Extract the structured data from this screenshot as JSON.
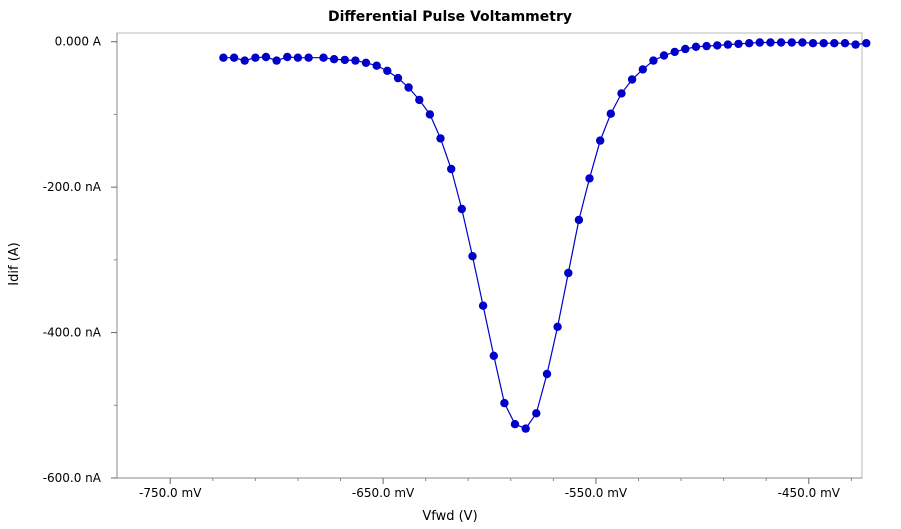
{
  "chart_data": {
    "type": "line",
    "title": "Differential Pulse Voltammetry",
    "xlabel": "Vfwd (V)",
    "ylabel": "Idif (A)",
    "xlim": [
      -775,
      -425
    ],
    "ylim": [
      -600,
      12
    ],
    "x_unit": "mV",
    "y_unit": "nA",
    "x_ticks": [
      {
        "value": -750,
        "label": "-750.0 mV"
      },
      {
        "value": -650,
        "label": "-650.0 mV"
      },
      {
        "value": -550,
        "label": "-550.0 mV"
      },
      {
        "value": -450,
        "label": "-450.0 mV"
      }
    ],
    "x_minor_ticks": [
      -730,
      -710,
      -690,
      -670,
      -630,
      -610,
      -590,
      -570,
      -530,
      -510,
      -490,
      -470,
      -430
    ],
    "y_ticks": [
      {
        "value": 0,
        "label": "0.000 A"
      },
      {
        "value": -200,
        "label": "-200.0 nA"
      },
      {
        "value": -400,
        "label": "-400.0 nA"
      },
      {
        "value": -600,
        "label": "-600.0 nA"
      }
    ],
    "y_minor_ticks": [
      -100,
      -300,
      -500
    ],
    "grid": false,
    "series": [
      {
        "color": "#0000c8",
        "marker": "circle",
        "x": [
          -725,
          -720,
          -715,
          -710,
          -705,
          -700,
          -695,
          -690,
          -685,
          -678,
          -673,
          -668,
          -663,
          -658,
          -653,
          -648,
          -643,
          -638,
          -633,
          -628,
          -623,
          -618,
          -613,
          -608,
          -603,
          -598,
          -593,
          -588,
          -583,
          -578,
          -573,
          -568,
          -563,
          -558,
          -553,
          -548,
          -543,
          -538,
          -533,
          -528,
          -523,
          -518,
          -513,
          -508,
          -503,
          -498,
          -493,
          -488,
          -483,
          -478,
          -473,
          -468,
          -463,
          -458,
          -453,
          -448,
          -443,
          -438,
          -433,
          -428,
          -423
        ],
        "y": [
          -22,
          -22,
          -26,
          -22,
          -21,
          -26,
          -21,
          -22,
          -22,
          -22,
          -24,
          -25,
          -26,
          -29,
          -33,
          -40,
          -50,
          -63,
          -80,
          -100,
          -133,
          -175,
          -230,
          -295,
          -363,
          -432,
          -497,
          -526,
          -532,
          -511,
          -457,
          -392,
          -318,
          -245,
          -188,
          -136,
          -99,
          -71,
          -52,
          -38,
          -26,
          -19,
          -14,
          -10,
          -7,
          -6,
          -5,
          -4,
          -3,
          -2,
          -1,
          -1,
          -1,
          -1,
          -1,
          -2,
          -2,
          -2,
          -2,
          -4,
          -2
        ]
      }
    ]
  }
}
